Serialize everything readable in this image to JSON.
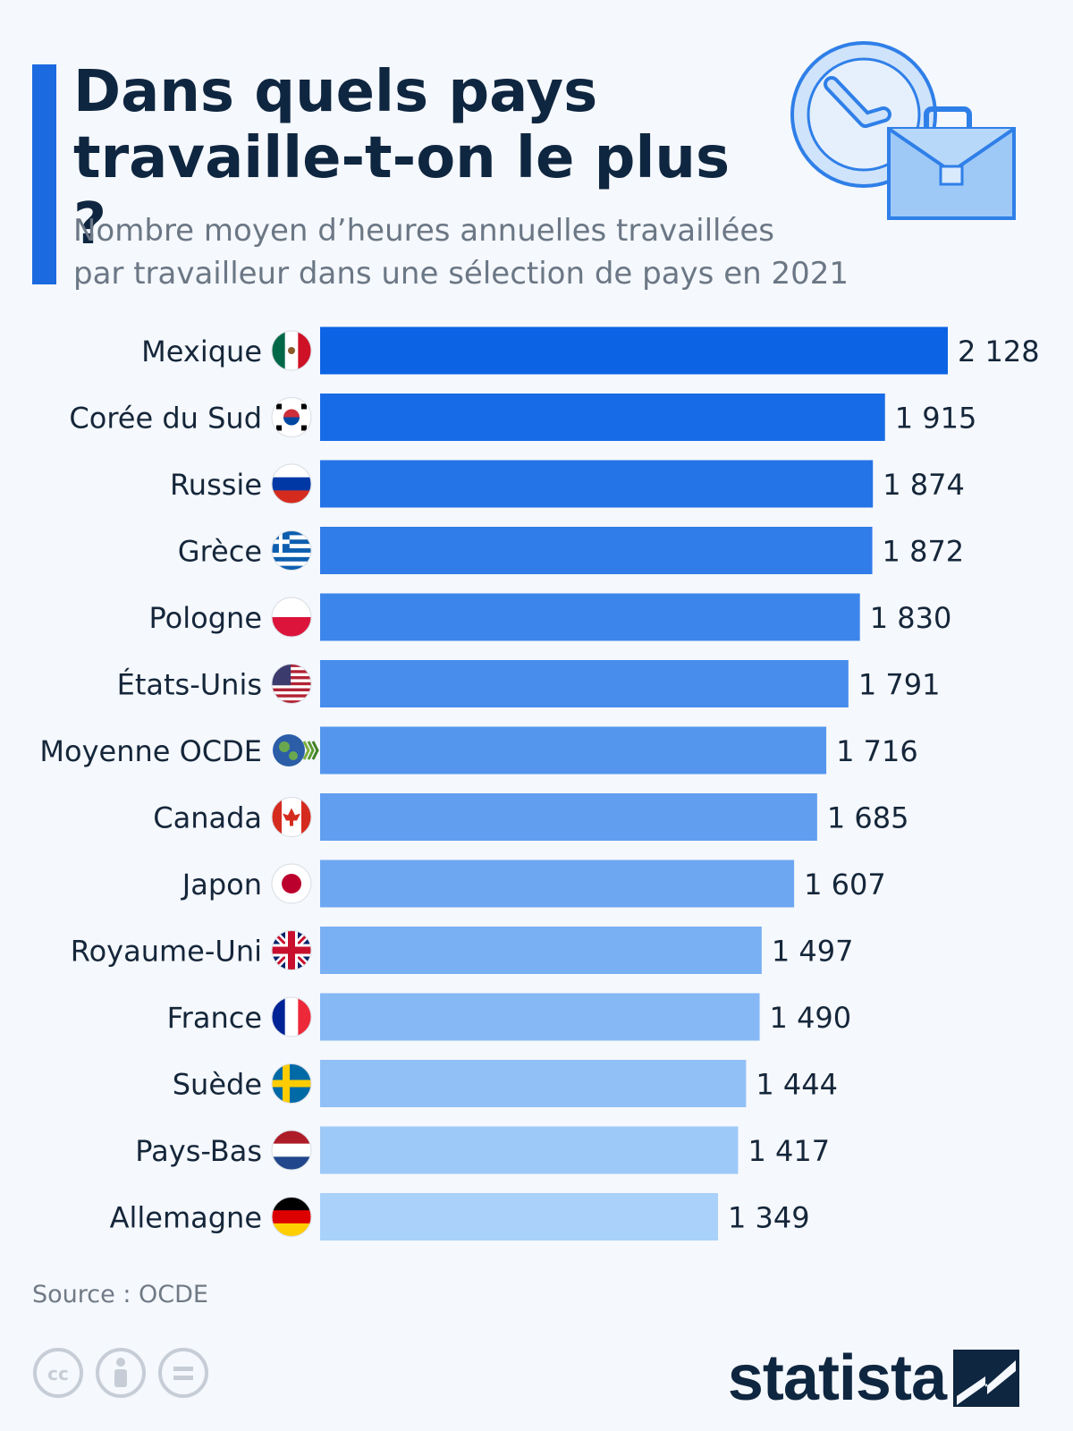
{
  "title_lines": [
    "Dans quels pays",
    "travaille-t-on le plus ?"
  ],
  "subtitle_lines": [
    "Nombre moyen d’heures annuelles travaillées",
    "par travailleur dans une sélection de pays en 2021"
  ],
  "source": "Source : OCDE",
  "brand": "statista",
  "colors": {
    "accent": "#1c6ae0",
    "bar_top": "#0c63e4",
    "bar_bottom": "#a9d1fa",
    "text_dark": "#0f2640"
  },
  "chart_data": {
    "type": "bar",
    "orientation": "horizontal",
    "categories": [
      "Mexique",
      "Corée du Sud",
      "Russie",
      "Grèce",
      "Pologne",
      "États-Unis",
      "Moyenne OCDE",
      "Canada",
      "Japon",
      "Royaume-Uni",
      "France",
      "Suède",
      "Pays-Bas",
      "Allemagne"
    ],
    "flags": [
      "mexico",
      "south-korea",
      "russia",
      "greece",
      "poland",
      "usa",
      "oecd",
      "canada",
      "japan",
      "uk",
      "france",
      "sweden",
      "netherlands",
      "germany"
    ],
    "values": [
      2128,
      1915,
      1874,
      1872,
      1830,
      1791,
      1716,
      1685,
      1607,
      1497,
      1490,
      1444,
      1417,
      1349
    ],
    "value_labels": [
      "2 128",
      "1 915",
      "1 874",
      "1 872",
      "1 830",
      "1 791",
      "1 716",
      "1 685",
      "1 607",
      "1 497",
      "1 490",
      "1 444",
      "1 417",
      "1 349"
    ],
    "xlim": [
      0,
      2128
    ]
  }
}
